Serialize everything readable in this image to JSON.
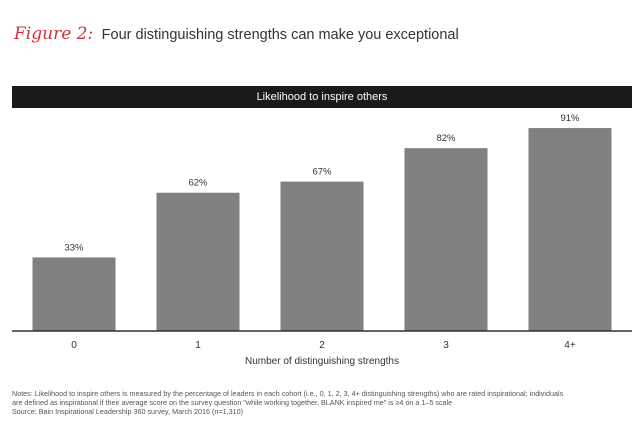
{
  "figure": {
    "label": "Figure 2:",
    "title": "Four distinguishing strengths can make you exceptional"
  },
  "colors": {
    "accent": "#d5303e",
    "bar": "#808080",
    "header_bg": "#1a1a1a",
    "axis": "#333333"
  },
  "chart_data": {
    "type": "bar",
    "title": "Likelihood to inspire others",
    "categories": [
      "0",
      "1",
      "2",
      "3",
      "4+"
    ],
    "values": [
      33,
      62,
      67,
      82,
      91
    ],
    "value_labels": [
      "33%",
      "62%",
      "67%",
      "82%",
      "91%"
    ],
    "xlabel": "Number of distinguishing strengths",
    "ylabel": "",
    "ylim": [
      0,
      100
    ],
    "grid": false,
    "legend": "none"
  },
  "notes": {
    "line1": "Notes: Likelihood to inspire others is measured by the percentage of leaders in each cohort (i.e., 0, 1, 2, 3, 4+ distinguishing strengths) who are rated inspirational; individuals",
    "line2": "are defined as inspirational if their average score on the survey question \"while working together, BLANK inspired me\" is ≥4 on a 1–5 scale",
    "source": "Source: Bain Inspirational Leadership 360 survey, March 2016 (n=1,310)"
  }
}
